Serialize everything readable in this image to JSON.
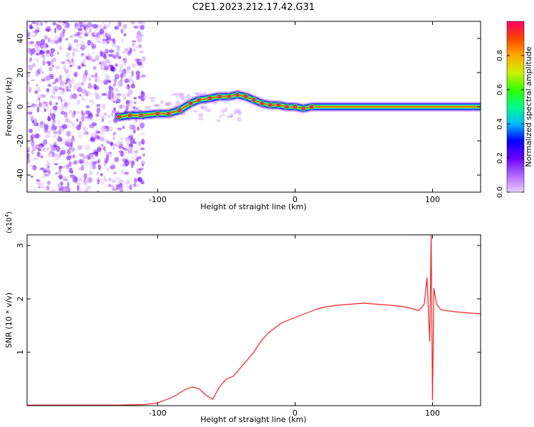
{
  "title": "C2E1.2023.212.17.42.G31",
  "chart_data": [
    {
      "type": "heatmap",
      "title": "C2E1.2023.212.17.42.G31",
      "xlabel": "Height of straight line (km)",
      "ylabel": "Frequency (Hz)",
      "xlim": [
        -195,
        135
      ],
      "ylim": [
        -50,
        50
      ],
      "x_ticks": [
        -100,
        0,
        100
      ],
      "y_ticks": [
        -40,
        -20,
        0,
        20,
        40
      ],
      "colorbar": {
        "label": "Normalized spectral amplitude",
        "range": [
          0.0,
          1.0
        ],
        "ticks": [
          "0.0",
          "0.2",
          "0.4",
          "0.6",
          "0.8"
        ],
        "colors": [
          "#e8ccff",
          "#b266ff",
          "#6a00ff",
          "#0000ff",
          "#00bbff",
          "#00ff88",
          "#33ff00",
          "#ccee00",
          "#ffaa00",
          "#ff4400",
          "#ff0066"
        ]
      },
      "ridge": {
        "x": [
          -128,
          -120,
          -112,
          -100,
          -92,
          -84,
          -76,
          -70,
          -62,
          -55,
          -48,
          -42,
          -36,
          -30,
          -24,
          -18,
          -12,
          -6,
          0,
          6,
          12,
          40,
          80,
          92,
          96,
          100,
          120,
          135
        ],
        "y": [
          -6,
          -5,
          -5,
          -4,
          -4,
          -2,
          2,
          4,
          5,
          6,
          6,
          7,
          6,
          4,
          2,
          1,
          1,
          0,
          0,
          -1,
          0,
          0,
          0,
          0,
          0,
          0,
          0,
          0
        ]
      },
      "noise_region_x": [
        -195,
        -110
      ]
    },
    {
      "type": "line",
      "xlabel": "Height of straight line (km)",
      "ylabel": "SNR (10 * v/v)",
      "y_multiplier": "(x10",
      "y_multiplier_exp": "4",
      "y_multiplier_close": ")",
      "xlim": [
        -195,
        135
      ],
      "ylim": [
        0,
        3.2
      ],
      "x_ticks": [
        -100,
        0,
        100
      ],
      "y_ticks": [
        1,
        2,
        3
      ],
      "color": "#ee2222",
      "series": [
        {
          "x": [
            -195,
            -160,
            -130,
            -110,
            -100,
            -95,
            -90,
            -85,
            -80,
            -75,
            -70,
            -65,
            -60,
            -55,
            -50,
            -45,
            -40,
            -35,
            -30,
            -25,
            -20,
            -15,
            -10,
            -5,
            0,
            5,
            10,
            15,
            20,
            25,
            30,
            40,
            50,
            60,
            70,
            80,
            85,
            90,
            94,
            96,
            98,
            99,
            100,
            101,
            103,
            106,
            110,
            120,
            135
          ],
          "y": [
            0.01,
            0.01,
            0.01,
            0.02,
            0.05,
            0.1,
            0.15,
            0.22,
            0.3,
            0.35,
            0.32,
            0.2,
            0.12,
            0.35,
            0.5,
            0.55,
            0.7,
            0.85,
            1.0,
            1.2,
            1.35,
            1.45,
            1.55,
            1.6,
            1.65,
            1.7,
            1.75,
            1.8,
            1.84,
            1.86,
            1.88,
            1.9,
            1.92,
            1.9,
            1.88,
            1.85,
            1.82,
            1.78,
            1.9,
            2.4,
            1.2,
            3.2,
            0.1,
            2.2,
            1.9,
            1.8,
            1.78,
            1.75,
            1.72
          ]
        }
      ]
    }
  ]
}
